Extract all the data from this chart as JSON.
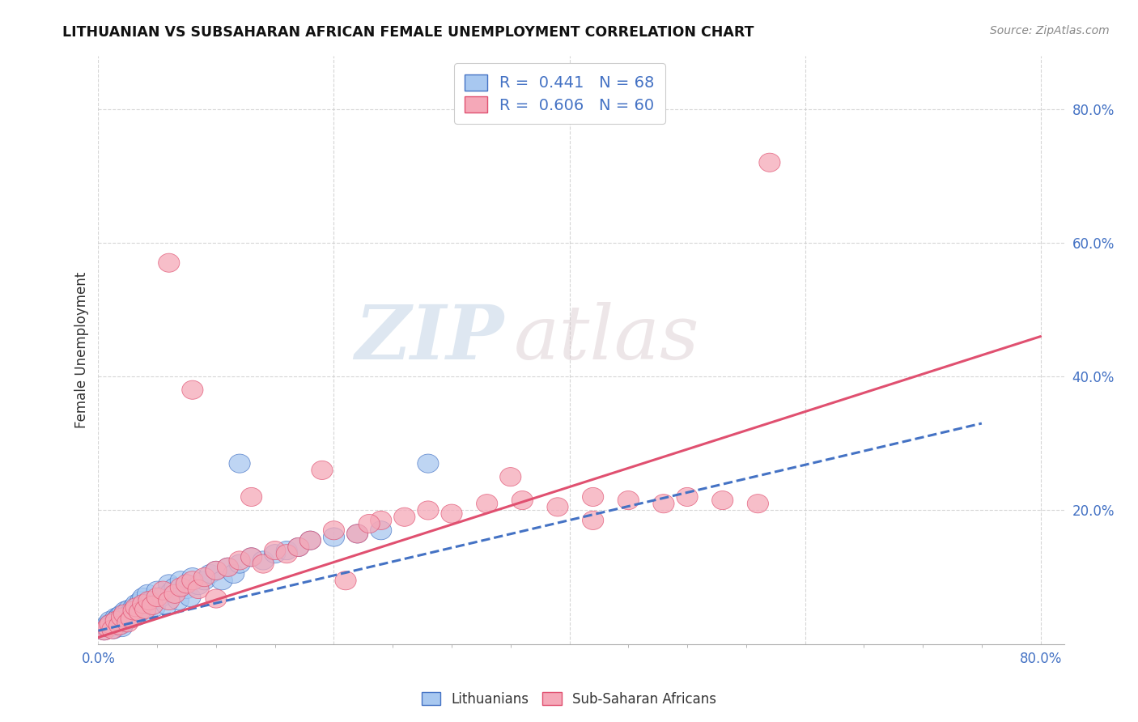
{
  "title": "LITHUANIAN VS SUBSAHARAN AFRICAN FEMALE UNEMPLOYMENT CORRELATION CHART",
  "source": "Source: ZipAtlas.com",
  "ylabel": "Female Unemployment",
  "legend1_R": "0.441",
  "legend1_N": "68",
  "legend2_R": "0.606",
  "legend2_N": "60",
  "color_blue": "#a8c8f0",
  "color_pink": "#f5a8b8",
  "line_blue": "#4472c4",
  "line_pink": "#e05070",
  "text_color": "#4472c4",
  "watermark_zip": "ZIP",
  "watermark_atlas": "atlas",
  "xlim": [
    0,
    0.82
  ],
  "ylim": [
    0,
    0.88
  ],
  "blue_line_x": [
    0.0,
    0.75
  ],
  "blue_line_y": [
    0.02,
    0.33
  ],
  "pink_line_x": [
    0.0,
    0.8
  ],
  "pink_line_y": [
    0.01,
    0.46
  ],
  "blue_x": [
    0.005,
    0.007,
    0.008,
    0.01,
    0.01,
    0.011,
    0.012,
    0.013,
    0.014,
    0.015,
    0.016,
    0.017,
    0.018,
    0.019,
    0.02,
    0.02,
    0.021,
    0.022,
    0.023,
    0.024,
    0.025,
    0.026,
    0.027,
    0.028,
    0.03,
    0.031,
    0.032,
    0.033,
    0.034,
    0.035,
    0.036,
    0.038,
    0.04,
    0.041,
    0.042,
    0.045,
    0.048,
    0.05,
    0.052,
    0.055,
    0.058,
    0.06,
    0.062,
    0.065,
    0.068,
    0.07,
    0.075,
    0.078,
    0.08,
    0.085,
    0.09,
    0.095,
    0.1,
    0.105,
    0.11,
    0.115,
    0.12,
    0.13,
    0.14,
    0.15,
    0.16,
    0.17,
    0.18,
    0.2,
    0.22,
    0.24,
    0.12,
    0.28
  ],
  "blue_y": [
    0.02,
    0.025,
    0.03,
    0.035,
    0.03,
    0.025,
    0.028,
    0.022,
    0.032,
    0.04,
    0.038,
    0.035,
    0.042,
    0.028,
    0.025,
    0.045,
    0.038,
    0.032,
    0.05,
    0.044,
    0.038,
    0.052,
    0.046,
    0.04,
    0.055,
    0.048,
    0.06,
    0.042,
    0.058,
    0.052,
    0.065,
    0.07,
    0.048,
    0.06,
    0.075,
    0.065,
    0.055,
    0.08,
    0.068,
    0.072,
    0.058,
    0.09,
    0.078,
    0.085,
    0.065,
    0.095,
    0.082,
    0.07,
    0.1,
    0.088,
    0.095,
    0.105,
    0.11,
    0.095,
    0.115,
    0.105,
    0.12,
    0.13,
    0.125,
    0.135,
    0.14,
    0.145,
    0.155,
    0.16,
    0.165,
    0.17,
    0.27,
    0.27
  ],
  "pink_x": [
    0.005,
    0.008,
    0.01,
    0.012,
    0.015,
    0.018,
    0.02,
    0.022,
    0.025,
    0.028,
    0.03,
    0.032,
    0.035,
    0.038,
    0.04,
    0.043,
    0.046,
    0.05,
    0.055,
    0.06,
    0.065,
    0.07,
    0.075,
    0.08,
    0.085,
    0.09,
    0.1,
    0.11,
    0.12,
    0.13,
    0.14,
    0.15,
    0.16,
    0.17,
    0.18,
    0.2,
    0.22,
    0.24,
    0.26,
    0.28,
    0.3,
    0.33,
    0.36,
    0.39,
    0.42,
    0.45,
    0.48,
    0.5,
    0.53,
    0.56,
    0.35,
    0.42,
    0.19,
    0.21,
    0.23,
    0.13,
    0.1,
    0.08,
    0.57,
    0.06
  ],
  "pink_y": [
    0.02,
    0.025,
    0.03,
    0.022,
    0.035,
    0.028,
    0.04,
    0.045,
    0.032,
    0.038,
    0.05,
    0.055,
    0.048,
    0.06,
    0.052,
    0.065,
    0.058,
    0.07,
    0.08,
    0.065,
    0.075,
    0.085,
    0.09,
    0.095,
    0.082,
    0.1,
    0.11,
    0.115,
    0.125,
    0.13,
    0.12,
    0.14,
    0.135,
    0.145,
    0.155,
    0.17,
    0.165,
    0.185,
    0.19,
    0.2,
    0.195,
    0.21,
    0.215,
    0.205,
    0.22,
    0.215,
    0.21,
    0.22,
    0.215,
    0.21,
    0.25,
    0.185,
    0.26,
    0.095,
    0.18,
    0.22,
    0.068,
    0.38,
    0.72,
    0.57
  ]
}
